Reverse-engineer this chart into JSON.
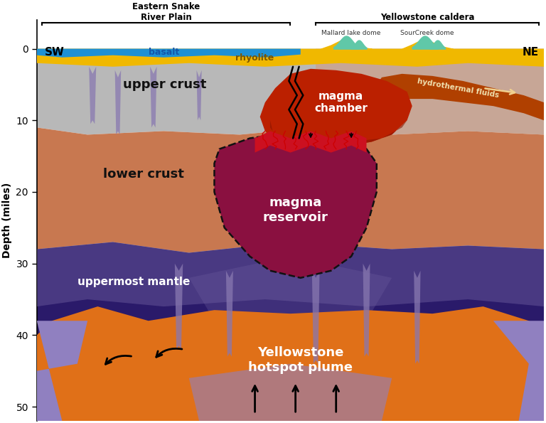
{
  "bg_color": "#ffffff",
  "layers": {
    "rhyolite_color": "#f0b800",
    "basalt_color": "#1e90d4",
    "upper_crust_gray": "#b8b8b8",
    "upper_crust_salmon": "#d4987a",
    "lower_crust_peach": "#c87850",
    "mantle_dark": "#2a1a6a",
    "mantle_mid": "#3a2888",
    "mantle_light_purple": "#7060a0",
    "hotspot_orange": "#e07018",
    "light_purple_corner": "#9080c0",
    "magma_reservoir_color": "#8a1040",
    "magma_chamber_red": "#bb2000",
    "magma_chamber_dark_red": "#881500",
    "hydrothermal_orange": "#b04000",
    "crack_red": "#cc1020",
    "vein_purple": "#8878b0"
  },
  "labels": {
    "eastern_snake": "Eastern Snake\nRiver Plain",
    "yellowstone_caldera": "Yellowstone caldera",
    "sw": "SW",
    "ne": "NE",
    "basalt": "basalt",
    "rhyolite": "rhyolite",
    "upper_crust": "upper crust",
    "lower_crust": "lower crust",
    "uppermost_mantle": "uppermost mantle",
    "magma_chamber": "magma\nchamber",
    "magma_reservoir": "magma\nreservoir",
    "hotspot_plume": "Yellowstone\nhotspot plume",
    "hydrothermal": "hydrothermal fluids",
    "mallard": "Mallard lake dome",
    "sourcreek": "SourCreek dome",
    "depth_label": "Depth (miles)"
  }
}
